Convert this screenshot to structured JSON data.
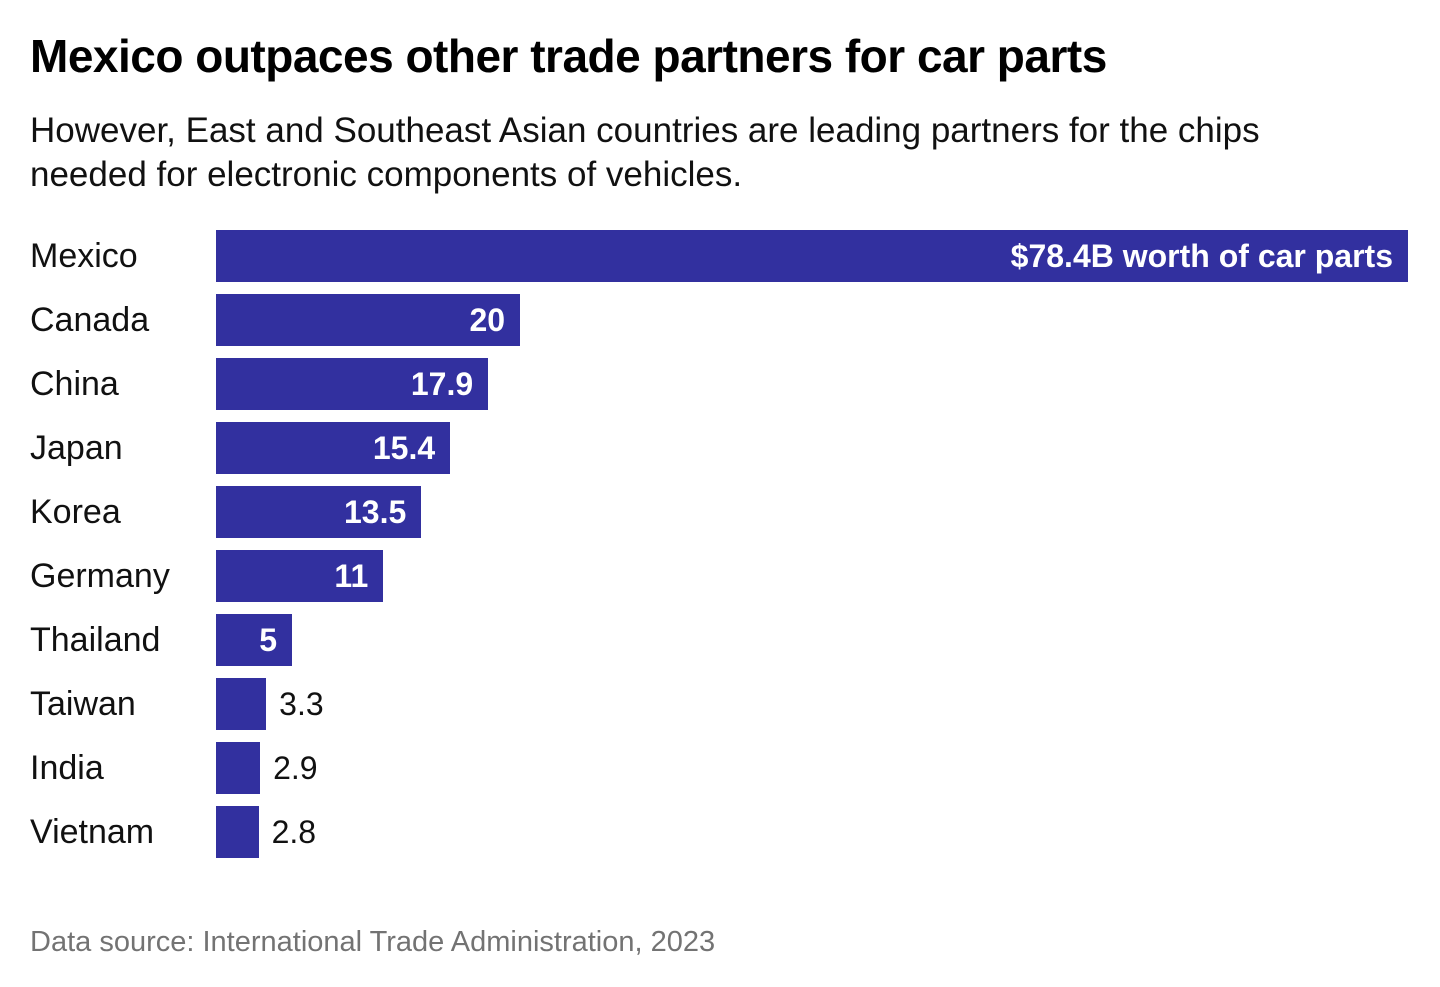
{
  "chart_data": {
    "type": "bar",
    "orientation": "horizontal",
    "title": "Mexico outpaces other trade partners for car parts",
    "subtitle": "However, East and Southeast Asian countries are leading partners for the chips needed for electronic components of vehicles.",
    "categories": [
      "Mexico",
      "Canada",
      "China",
      "Japan",
      "Korea",
      "Germany",
      "Thailand",
      "Taiwan",
      "India",
      "Vietnam"
    ],
    "values": [
      78.4,
      20,
      17.9,
      15.4,
      13.5,
      11,
      5,
      3.3,
      2.9,
      2.8
    ],
    "value_labels": [
      "$78.4B worth of car parts",
      "20",
      "17.9",
      "15.4",
      "13.5",
      "11",
      "5",
      "3.3",
      "2.9",
      "2.8"
    ],
    "label_placement": [
      "inside",
      "inside",
      "inside",
      "inside",
      "inside",
      "inside",
      "inside",
      "outside",
      "outside",
      "outside"
    ],
    "unit": "billion USD",
    "x_range": [
      0,
      78.4
    ],
    "grid": false,
    "legend": "none",
    "bar_color": "#32309f",
    "inside_label_color": "#ffffff",
    "outside_label_color": "#111111"
  },
  "footer": {
    "source": "Data source: International Trade Administration, 2023"
  }
}
